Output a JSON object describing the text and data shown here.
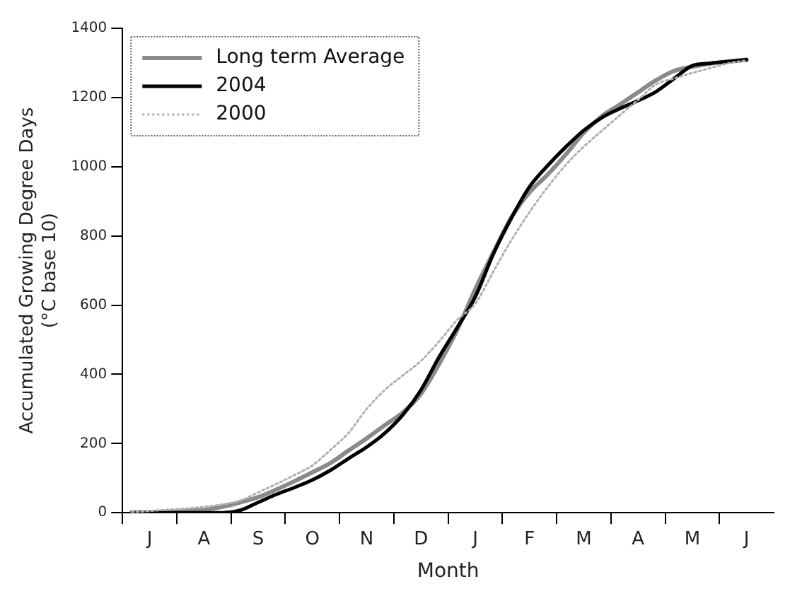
{
  "chart_data": {
    "type": "line",
    "xlabel": "Month",
    "ylabel": "Accumulated Growing Degree Days\n(°C base 10)",
    "categories": [
      null,
      "J",
      null,
      null,
      "A",
      null,
      null,
      "S",
      null,
      null,
      "O",
      null,
      null,
      "N",
      null,
      null,
      "D",
      null,
      null,
      "J",
      null,
      null,
      "F",
      null,
      null,
      "M",
      null,
      null,
      "A",
      null,
      null,
      "M",
      null,
      null,
      "J",
      null
    ],
    "ylim": [
      0,
      1400
    ],
    "yticks": [
      0,
      200,
      400,
      600,
      800,
      1000,
      1200,
      1400
    ],
    "grid": false,
    "legend": "top left",
    "marker": "none",
    "series": [
      {
        "name": "Long term Average",
        "color": "#8a8a8a",
        "line_style": "solid",
        "values": [
          1,
          2,
          2,
          5,
          8,
          17,
          30,
          45,
          67,
          91,
          117,
          144,
          180,
          215,
          253,
          290,
          344,
          430,
          528,
          646,
          752,
          854,
          926,
          977,
          1035,
          1098,
          1146,
          1180,
          1215,
          1250,
          1277,
          1289,
          1298,
          1304,
          1309,
          null
        ]
      },
      {
        "name": "2004",
        "color": "#000000",
        "line_style": "solid",
        "values": [
          0,
          0,
          0,
          0,
          0,
          0,
          7,
          30,
          53,
          73,
          95,
          123,
          157,
          190,
          230,
          283,
          355,
          450,
          535,
          624,
          748,
          852,
          942,
          1003,
          1057,
          1105,
          1142,
          1168,
          1191,
          1217,
          1255,
          1292,
          1299,
          1304,
          1309,
          null
        ]
      },
      {
        "name": "2000",
        "color": "#b0b0b0",
        "line_style": "dotted",
        "values": [
          2,
          5,
          9,
          12,
          17,
          24,
          35,
          59,
          83,
          109,
          137,
          182,
          231,
          300,
          355,
          397,
          439,
          495,
          557,
          604,
          697,
          788,
          869,
          941,
          1005,
          1058,
          1104,
          1149,
          1193,
          1238,
          1255,
          1271,
          1285,
          1299,
          1307,
          null
        ]
      }
    ]
  }
}
